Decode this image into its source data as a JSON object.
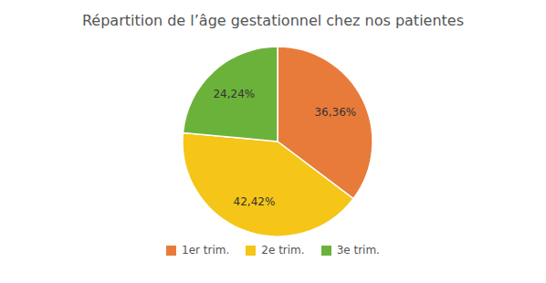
{
  "chart_data": {
    "type": "pie",
    "title": "Répartition de l’âge gestationnel chez nos patientes",
    "categories": [
      "1er trim.",
      "2e trim.",
      "3e trim."
    ],
    "values": [
      36.36,
      42.42,
      24.24
    ],
    "value_labels": [
      "36,36%",
      "42,42%",
      "24,24%"
    ],
    "colors": [
      "#E87B3A",
      "#F5C518",
      "#6BB23A"
    ],
    "data_labels": true,
    "legend": "bottom"
  }
}
